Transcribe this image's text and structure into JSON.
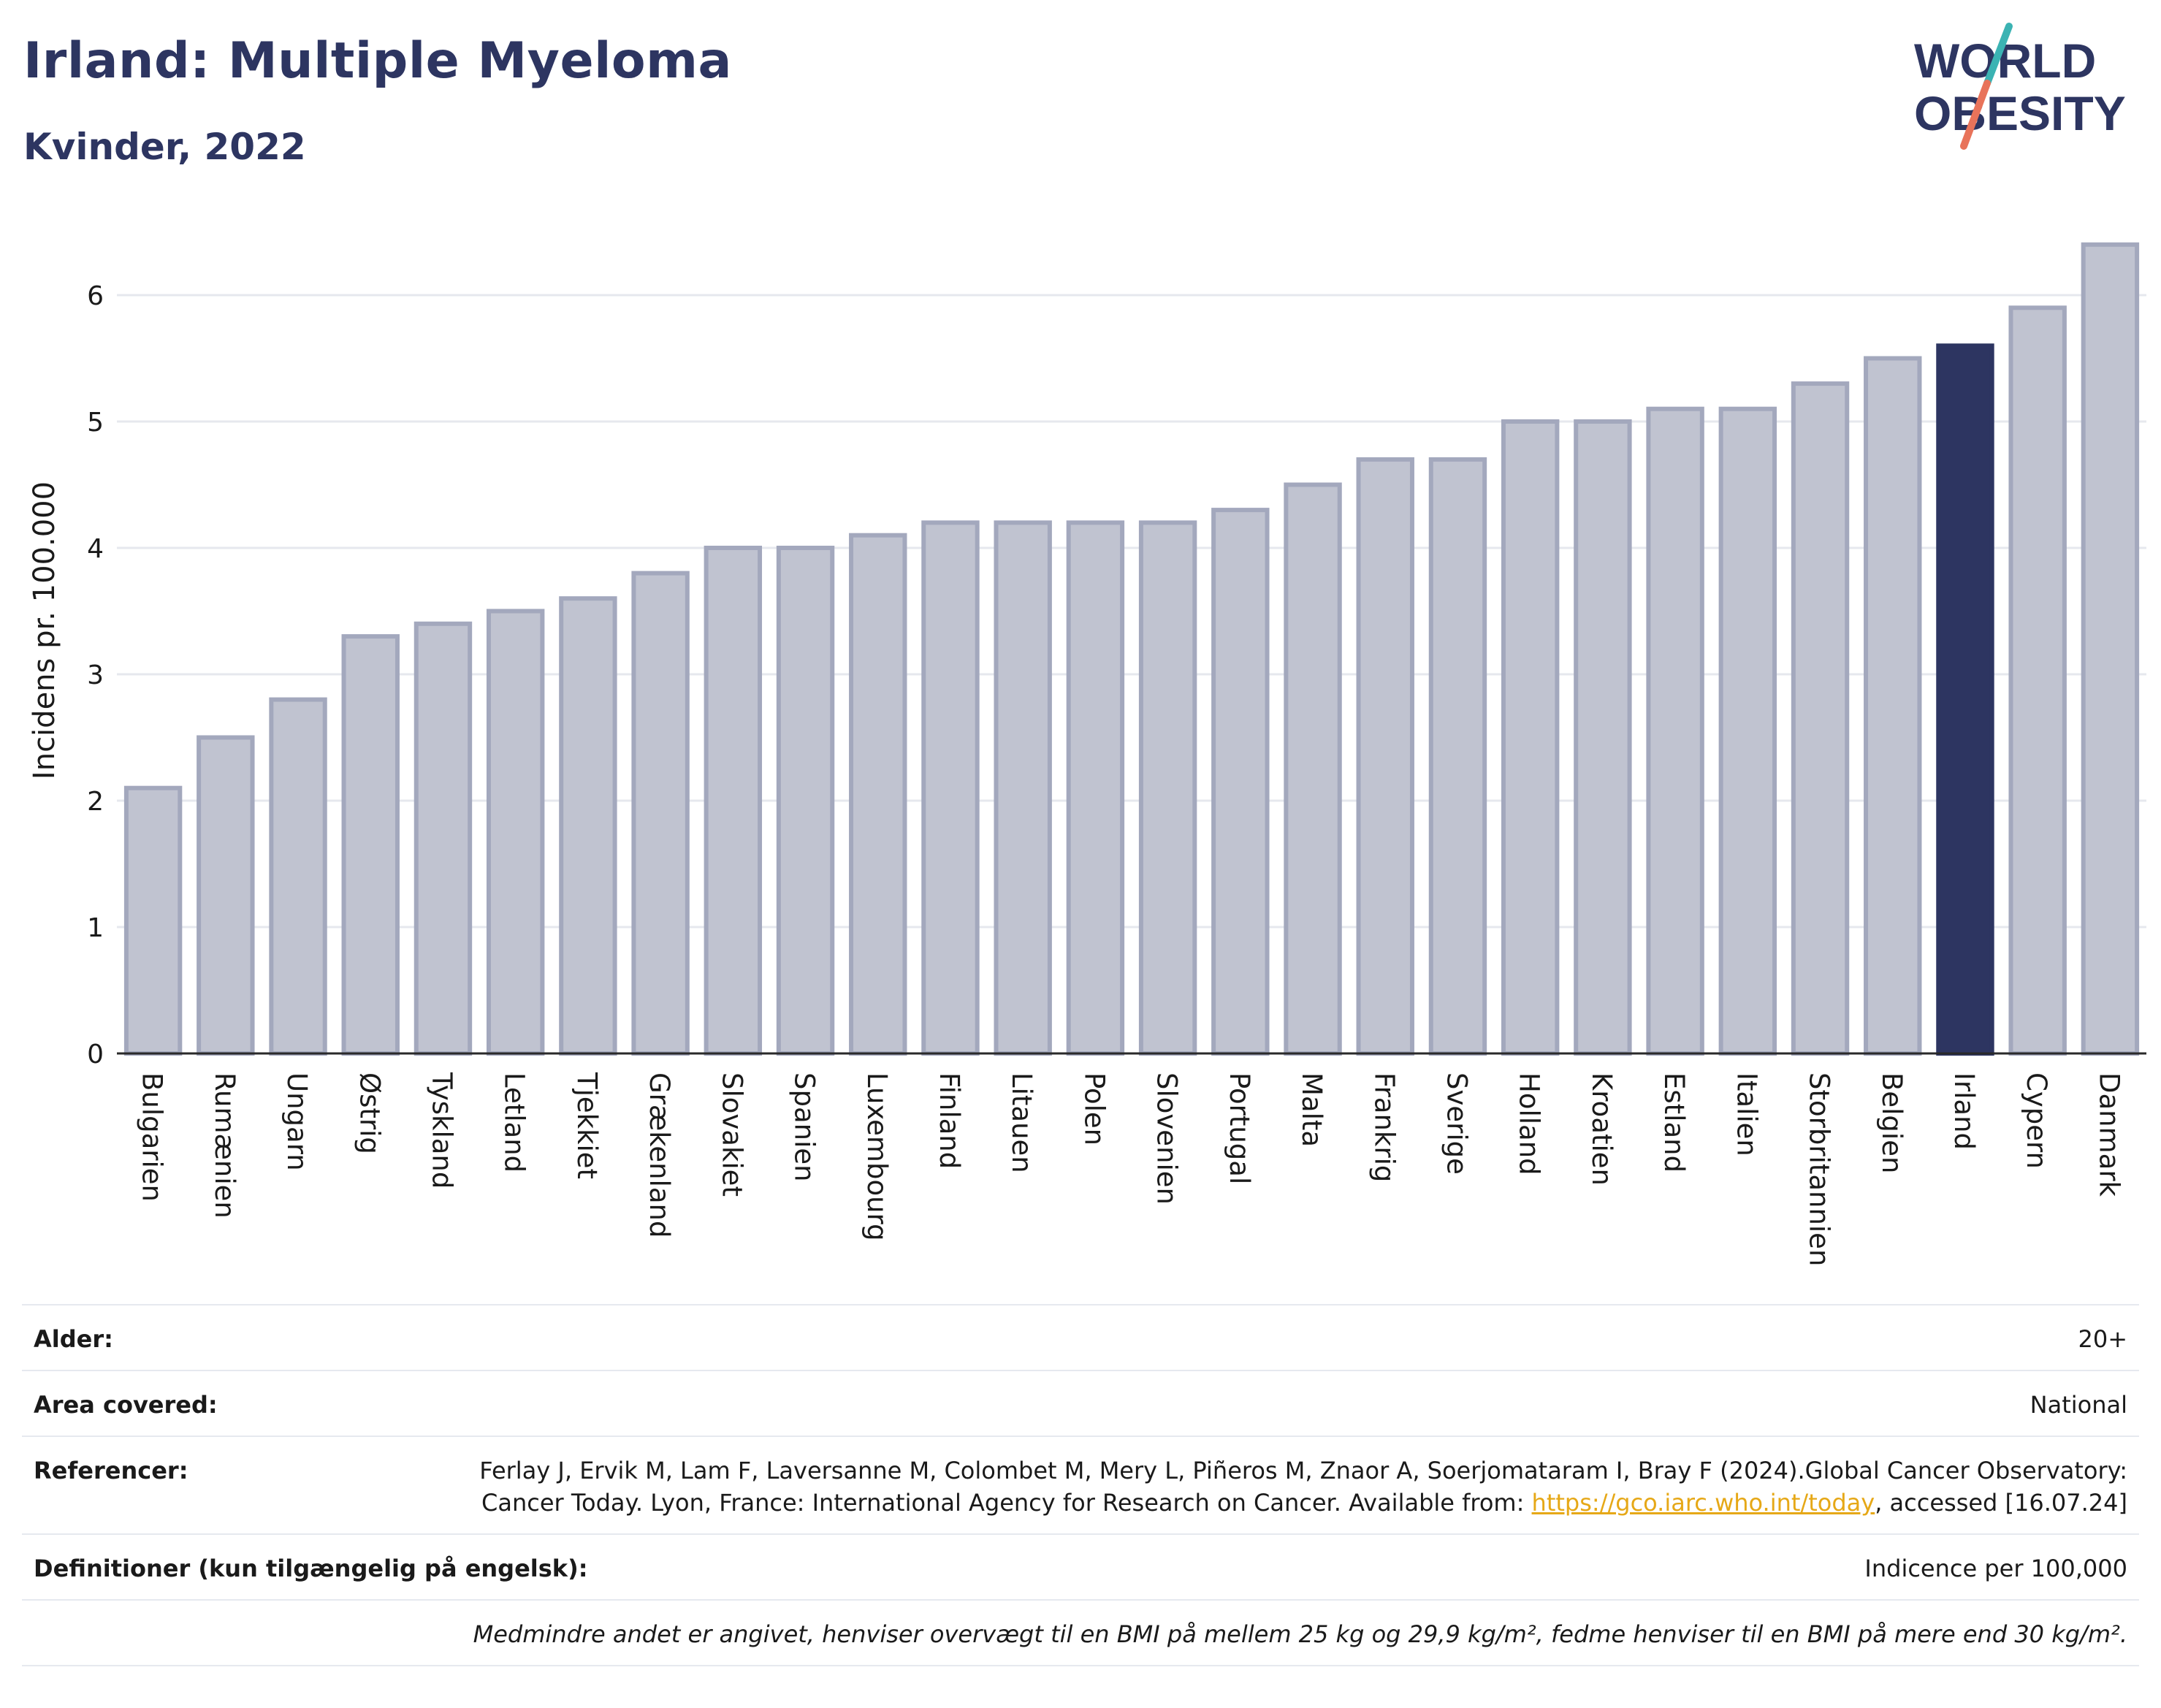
{
  "header": {
    "title": "Irland: Multiple Myeloma",
    "subtitle": "Kvinder, 2022",
    "logo_line1": "WORLD",
    "logo_line2": "OBESITY"
  },
  "colors": {
    "bar_default": "#c0c3d0",
    "bar_default_stroke": "#a3a8bd",
    "bar_highlight": "#2d3561",
    "brand": "#2d3561",
    "logo_accent_teal": "#3bb3b3",
    "logo_accent_red": "#e8735a",
    "link": "#e6a817"
  },
  "chart_data": {
    "type": "bar",
    "ylabel": "Incidens pr. 100.000",
    "xlabel": "",
    "ylim": [
      0,
      6.5
    ],
    "yticks": [
      0,
      1,
      2,
      3,
      4,
      5,
      6
    ],
    "grid": true,
    "highlight": "Irland",
    "categories": [
      "Bulgarien",
      "Rumænien",
      "Ungarn",
      "Østrig",
      "Tyskland",
      "Letland",
      "Tjekkiet",
      "Grækenland",
      "Slovakiet",
      "Spanien",
      "Luxembourg",
      "Finland",
      "Litauen",
      "Polen",
      "Slovenien",
      "Portugal",
      "Malta",
      "Frankrig",
      "Sverige",
      "Holland",
      "Kroatien",
      "Estland",
      "Italien",
      "Storbritannien",
      "Belgien",
      "Irland",
      "Cypern",
      "Danmark"
    ],
    "values": [
      2.1,
      2.5,
      2.8,
      3.3,
      3.4,
      3.5,
      3.6,
      3.8,
      4.0,
      4.0,
      4.1,
      4.2,
      4.2,
      4.2,
      4.2,
      4.3,
      4.5,
      4.7,
      4.7,
      5.0,
      5.0,
      5.1,
      5.1,
      5.3,
      5.5,
      5.6,
      5.9,
      6.4
    ]
  },
  "footer": {
    "age_label": "Alder:",
    "age_value": "20+",
    "area_label": "Area covered:",
    "area_value": "National",
    "ref_label": "Referencer:",
    "ref_text_1": "Ferlay J, Ervik M, Lam F, Laversanne M, Colombet M, Mery L, Piñeros M, Znaor A, Soerjomataram I, Bray F (2024).Global Cancer Observatory: Cancer Today. Lyon, France: International Agency for Research on Cancer. Available from: ",
    "ref_link": "https://gco.iarc.who.int/today",
    "ref_text_2": ", accessed [16.07.24]",
    "def_label": "Definitioner (kun tilgængelig på engelsk):",
    "def_value": "Indicence per 100,000",
    "note": "Medmindre andet er angivet, henviser overvægt til en BMI på mellem 25 kg og 29,9 kg/m², fedme henviser til en BMI på mere end 30 kg/m²."
  }
}
